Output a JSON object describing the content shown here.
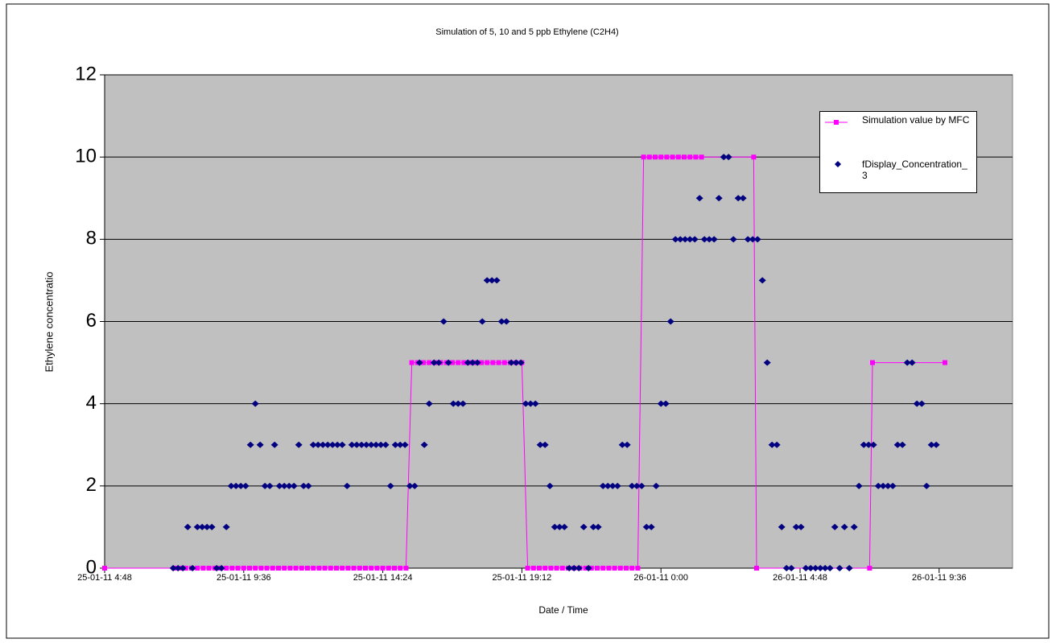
{
  "chart_data": {
    "type": "scatter",
    "title": "Simulation of 5, 10 and 5 ppb Ethylene (C2H4)",
    "xlabel": "Date / Time",
    "ylabel": "Ethylene concentratio",
    "xlim": [
      "2011-01-25T04:48",
      "2011-01-26T12:08"
    ],
    "xticks": [
      {
        "value": "2011-01-25T04:48",
        "label": "25-01-11 4:48"
      },
      {
        "value": "2011-01-25T09:36",
        "label": "25-01-11 9:36"
      },
      {
        "value": "2011-01-25T14:24",
        "label": "25-01-11 14:24"
      },
      {
        "value": "2011-01-25T19:12",
        "label": "25-01-11 19:12"
      },
      {
        "value": "2011-01-26T00:00",
        "label": "26-01-11 0:00"
      },
      {
        "value": "2011-01-26T04:48",
        "label": "26-01-11 4:48"
      },
      {
        "value": "2011-01-26T09:36",
        "label": "26-01-11 9:36"
      }
    ],
    "ylim": [
      0,
      12
    ],
    "yticks": [
      0,
      2,
      4,
      6,
      8,
      10,
      12
    ],
    "grid": true,
    "legend": "upper right",
    "series": [
      {
        "name": "Simulation value by MFC",
        "color": "#ff00ff",
        "line": true,
        "marker": "square",
        "x": [
          "2011-01-25T04:48",
          "2011-01-25T07:12",
          "2011-01-25T07:24",
          "2011-01-25T07:36",
          "2011-01-25T07:48",
          "2011-01-25T08:00",
          "2011-01-25T08:12",
          "2011-01-25T08:24",
          "2011-01-25T08:36",
          "2011-01-25T08:48",
          "2011-01-25T09:00",
          "2011-01-25T09:12",
          "2011-01-25T09:24",
          "2011-01-25T09:36",
          "2011-01-25T09:48",
          "2011-01-25T10:00",
          "2011-01-25T10:12",
          "2011-01-25T10:24",
          "2011-01-25T10:36",
          "2011-01-25T10:48",
          "2011-01-25T11:00",
          "2011-01-25T11:12",
          "2011-01-25T11:24",
          "2011-01-25T11:36",
          "2011-01-25T11:48",
          "2011-01-25T12:00",
          "2011-01-25T12:12",
          "2011-01-25T12:24",
          "2011-01-25T12:36",
          "2011-01-25T12:48",
          "2011-01-25T13:00",
          "2011-01-25T13:12",
          "2011-01-25T13:24",
          "2011-01-25T13:36",
          "2011-01-25T13:48",
          "2011-01-25T14:00",
          "2011-01-25T14:12",
          "2011-01-25T14:24",
          "2011-01-25T14:36",
          "2011-01-25T14:48",
          "2011-01-25T15:00",
          "2011-01-25T15:12",
          "2011-01-25T15:24",
          "2011-01-25T15:36",
          "2011-01-25T15:48",
          "2011-01-25T16:00",
          "2011-01-25T16:12",
          "2011-01-25T16:24",
          "2011-01-25T16:36",
          "2011-01-25T16:48",
          "2011-01-25T17:00",
          "2011-01-25T17:12",
          "2011-01-25T17:24",
          "2011-01-25T17:36",
          "2011-01-25T17:48",
          "2011-01-25T18:00",
          "2011-01-25T18:12",
          "2011-01-25T18:24",
          "2011-01-25T18:36",
          "2011-01-25T18:48",
          "2011-01-25T19:00",
          "2011-01-25T19:12",
          "2011-01-25T19:24",
          "2011-01-25T19:36",
          "2011-01-25T19:48",
          "2011-01-25T20:00",
          "2011-01-25T20:12",
          "2011-01-25T20:24",
          "2011-01-25T20:36",
          "2011-01-25T20:48",
          "2011-01-25T21:00",
          "2011-01-25T21:12",
          "2011-01-25T21:24",
          "2011-01-25T21:36",
          "2011-01-25T21:48",
          "2011-01-25T22:00",
          "2011-01-25T22:12",
          "2011-01-25T22:24",
          "2011-01-25T22:36",
          "2011-01-25T22:48",
          "2011-01-25T23:00",
          "2011-01-25T23:12",
          "2011-01-25T23:24",
          "2011-01-25T23:36",
          "2011-01-25T23:48",
          "2011-01-26T00:00",
          "2011-01-26T00:12",
          "2011-01-26T00:24",
          "2011-01-26T00:36",
          "2011-01-26T00:48",
          "2011-01-26T01:00",
          "2011-01-26T01:12",
          "2011-01-26T01:24",
          "2011-01-26T03:12",
          "2011-01-26T03:18",
          "2011-01-26T07:12",
          "2011-01-26T07:18",
          "2011-01-26T09:48"
        ],
        "values": [
          0,
          0,
          0,
          0,
          0,
          0,
          0,
          0,
          0,
          0,
          0,
          0,
          0,
          0,
          0,
          0,
          0,
          0,
          0,
          0,
          0,
          0,
          0,
          0,
          0,
          0,
          0,
          0,
          0,
          0,
          0,
          0,
          0,
          0,
          0,
          0,
          0,
          0,
          0,
          0,
          0,
          0,
          5,
          5,
          5,
          5,
          5,
          5,
          5,
          5,
          5,
          5,
          5,
          5,
          5,
          5,
          5,
          5,
          5,
          5,
          5,
          5,
          0,
          0,
          0,
          0,
          0,
          0,
          0,
          0,
          0,
          0,
          0,
          0,
          0,
          0,
          0,
          0,
          0,
          0,
          0,
          0,
          10,
          10,
          10,
          10,
          10,
          10,
          10,
          10,
          10,
          10,
          10,
          10,
          0,
          0,
          5,
          5
        ]
      },
      {
        "name": "fDisplay_Concentration_3",
        "color": "#000080",
        "line": false,
        "marker": "diamond",
        "x": [
          "2011-01-25T07:10",
          "2011-01-25T07:20",
          "2011-01-25T07:30",
          "2011-01-25T07:40",
          "2011-01-25T07:50",
          "2011-01-25T08:00",
          "2011-01-25T08:10",
          "2011-01-25T08:20",
          "2011-01-25T08:30",
          "2011-01-25T08:40",
          "2011-01-25T08:50",
          "2011-01-25T09:00",
          "2011-01-25T09:10",
          "2011-01-25T09:20",
          "2011-01-25T09:30",
          "2011-01-25T09:40",
          "2011-01-25T09:50",
          "2011-01-25T10:00",
          "2011-01-25T10:10",
          "2011-01-25T10:20",
          "2011-01-25T10:30",
          "2011-01-25T10:40",
          "2011-01-25T10:50",
          "2011-01-25T11:00",
          "2011-01-25T11:10",
          "2011-01-25T11:20",
          "2011-01-25T11:30",
          "2011-01-25T11:40",
          "2011-01-25T11:50",
          "2011-01-25T12:00",
          "2011-01-25T12:10",
          "2011-01-25T12:20",
          "2011-01-25T12:30",
          "2011-01-25T12:40",
          "2011-01-25T12:50",
          "2011-01-25T13:00",
          "2011-01-25T13:10",
          "2011-01-25T13:20",
          "2011-01-25T13:30",
          "2011-01-25T13:40",
          "2011-01-25T13:50",
          "2011-01-25T14:00",
          "2011-01-25T14:10",
          "2011-01-25T14:20",
          "2011-01-25T14:30",
          "2011-01-25T14:40",
          "2011-01-25T14:50",
          "2011-01-25T15:00",
          "2011-01-25T15:10",
          "2011-01-25T15:20",
          "2011-01-25T15:30",
          "2011-01-25T15:40",
          "2011-01-25T15:50",
          "2011-01-25T16:00",
          "2011-01-25T16:10",
          "2011-01-25T16:20",
          "2011-01-25T16:30",
          "2011-01-25T16:40",
          "2011-01-25T16:50",
          "2011-01-25T17:00",
          "2011-01-25T17:10",
          "2011-01-25T17:20",
          "2011-01-25T17:30",
          "2011-01-25T17:40",
          "2011-01-25T17:50",
          "2011-01-25T18:00",
          "2011-01-25T18:10",
          "2011-01-25T18:20",
          "2011-01-25T18:30",
          "2011-01-25T18:40",
          "2011-01-25T18:50",
          "2011-01-25T19:00",
          "2011-01-25T19:10",
          "2011-01-25T19:20",
          "2011-01-25T19:30",
          "2011-01-25T19:40",
          "2011-01-25T19:50",
          "2011-01-25T20:00",
          "2011-01-25T20:10",
          "2011-01-25T20:20",
          "2011-01-25T20:30",
          "2011-01-25T20:40",
          "2011-01-25T20:50",
          "2011-01-25T21:00",
          "2011-01-25T21:10",
          "2011-01-25T21:20",
          "2011-01-25T21:30",
          "2011-01-25T21:40",
          "2011-01-25T21:50",
          "2011-01-25T22:00",
          "2011-01-25T22:10",
          "2011-01-25T22:20",
          "2011-01-25T22:30",
          "2011-01-25T22:40",
          "2011-01-25T22:50",
          "2011-01-25T23:00",
          "2011-01-25T23:10",
          "2011-01-25T23:20",
          "2011-01-25T23:30",
          "2011-01-25T23:40",
          "2011-01-25T23:50",
          "2011-01-26T00:00",
          "2011-01-26T00:10",
          "2011-01-26T00:20",
          "2011-01-26T00:30",
          "2011-01-26T00:40",
          "2011-01-26T00:50",
          "2011-01-26T01:00",
          "2011-01-26T01:10",
          "2011-01-26T01:20",
          "2011-01-26T01:30",
          "2011-01-26T01:40",
          "2011-01-26T01:50",
          "2011-01-26T02:00",
          "2011-01-26T02:10",
          "2011-01-26T02:20",
          "2011-01-26T02:30",
          "2011-01-26T02:40",
          "2011-01-26T02:50",
          "2011-01-26T03:00",
          "2011-01-26T03:10",
          "2011-01-26T03:20",
          "2011-01-26T03:30",
          "2011-01-26T03:40",
          "2011-01-26T03:50",
          "2011-01-26T04:00",
          "2011-01-26T04:10",
          "2011-01-26T04:20",
          "2011-01-26T04:30",
          "2011-01-26T04:40",
          "2011-01-26T04:50",
          "2011-01-26T05:00",
          "2011-01-26T05:10",
          "2011-01-26T05:20",
          "2011-01-26T05:30",
          "2011-01-26T05:40",
          "2011-01-26T05:50",
          "2011-01-26T06:00",
          "2011-01-26T06:10",
          "2011-01-26T06:20",
          "2011-01-26T06:30",
          "2011-01-26T06:40",
          "2011-01-26T06:50",
          "2011-01-26T07:00",
          "2011-01-26T07:10",
          "2011-01-26T07:20",
          "2011-01-26T07:30",
          "2011-01-26T07:40",
          "2011-01-26T07:50",
          "2011-01-26T08:00",
          "2011-01-26T08:10",
          "2011-01-26T08:20",
          "2011-01-26T08:30",
          "2011-01-26T08:40",
          "2011-01-26T08:50",
          "2011-01-26T09:00",
          "2011-01-26T09:10",
          "2011-01-26T09:20",
          "2011-01-26T09:30"
        ],
        "values": [
          0,
          0,
          0,
          1,
          0,
          1,
          1,
          1,
          1,
          0,
          0,
          1,
          2,
          2,
          2,
          2,
          3,
          4,
          3,
          2,
          2,
          3,
          2,
          2,
          2,
          2,
          3,
          2,
          2,
          3,
          3,
          3,
          3,
          3,
          3,
          3,
          2,
          3,
          3,
          3,
          3,
          3,
          3,
          3,
          3,
          2,
          3,
          3,
          3,
          2,
          2,
          5,
          3,
          4,
          5,
          5,
          6,
          5,
          4,
          4,
          4,
          5,
          5,
          5,
          6,
          7,
          7,
          7,
          6,
          6,
          5,
          5,
          5,
          4,
          4,
          4,
          3,
          3,
          2,
          1,
          1,
          1,
          0,
          0,
          0,
          1,
          0,
          1,
          1,
          2,
          2,
          2,
          2,
          3,
          3,
          2,
          2,
          2,
          1,
          1,
          2,
          4,
          4,
          6,
          8,
          8,
          8,
          8,
          8,
          9,
          8,
          8,
          8,
          9,
          10,
          10,
          8,
          9,
          9,
          8,
          8,
          8,
          7,
          5,
          3,
          3,
          1,
          0,
          0,
          1,
          1,
          0,
          0,
          0,
          0,
          0,
          0,
          1,
          0,
          1,
          0,
          1,
          2,
          3,
          3,
          3,
          2,
          2,
          2,
          2,
          3,
          3,
          5,
          5,
          4,
          4,
          2,
          3,
          3
        ]
      }
    ]
  }
}
